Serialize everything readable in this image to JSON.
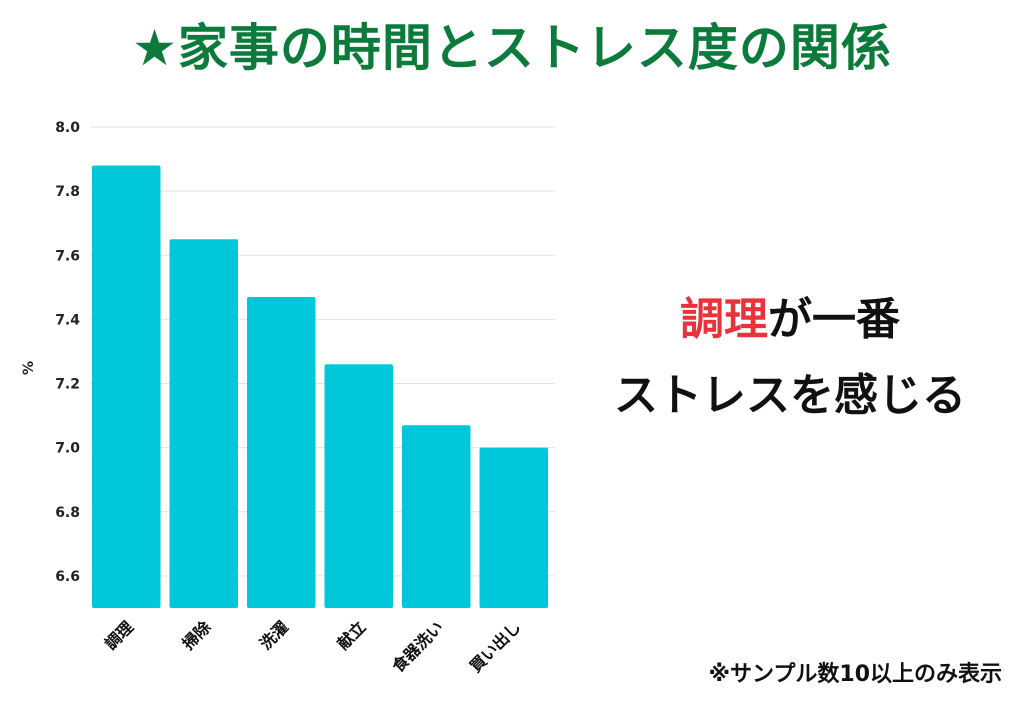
{
  "title": "★家事の時間とストレス度の関係",
  "callout": {
    "highlight": "調理",
    "line1_rest": "が一番",
    "line2": "ストレスを感じる",
    "highlight_color": "#e8333a"
  },
  "note": "※サンプル数10以上のみ表示",
  "chart_data": {
    "type": "bar",
    "categories": [
      "調理",
      "掃除",
      "洗濯",
      "献立",
      "食器洗い",
      "買い出し"
    ],
    "values": [
      7.88,
      7.65,
      7.47,
      7.26,
      7.07,
      7.0
    ],
    "ylabel": "%",
    "xlabel": "",
    "ylim": [
      6.5,
      8.0
    ],
    "yticks": [
      "6.6",
      "6.8",
      "7.0",
      "7.2",
      "7.4",
      "7.6",
      "7.8",
      "8.0"
    ],
    "grid": true,
    "bar_color": "#00c8da"
  }
}
